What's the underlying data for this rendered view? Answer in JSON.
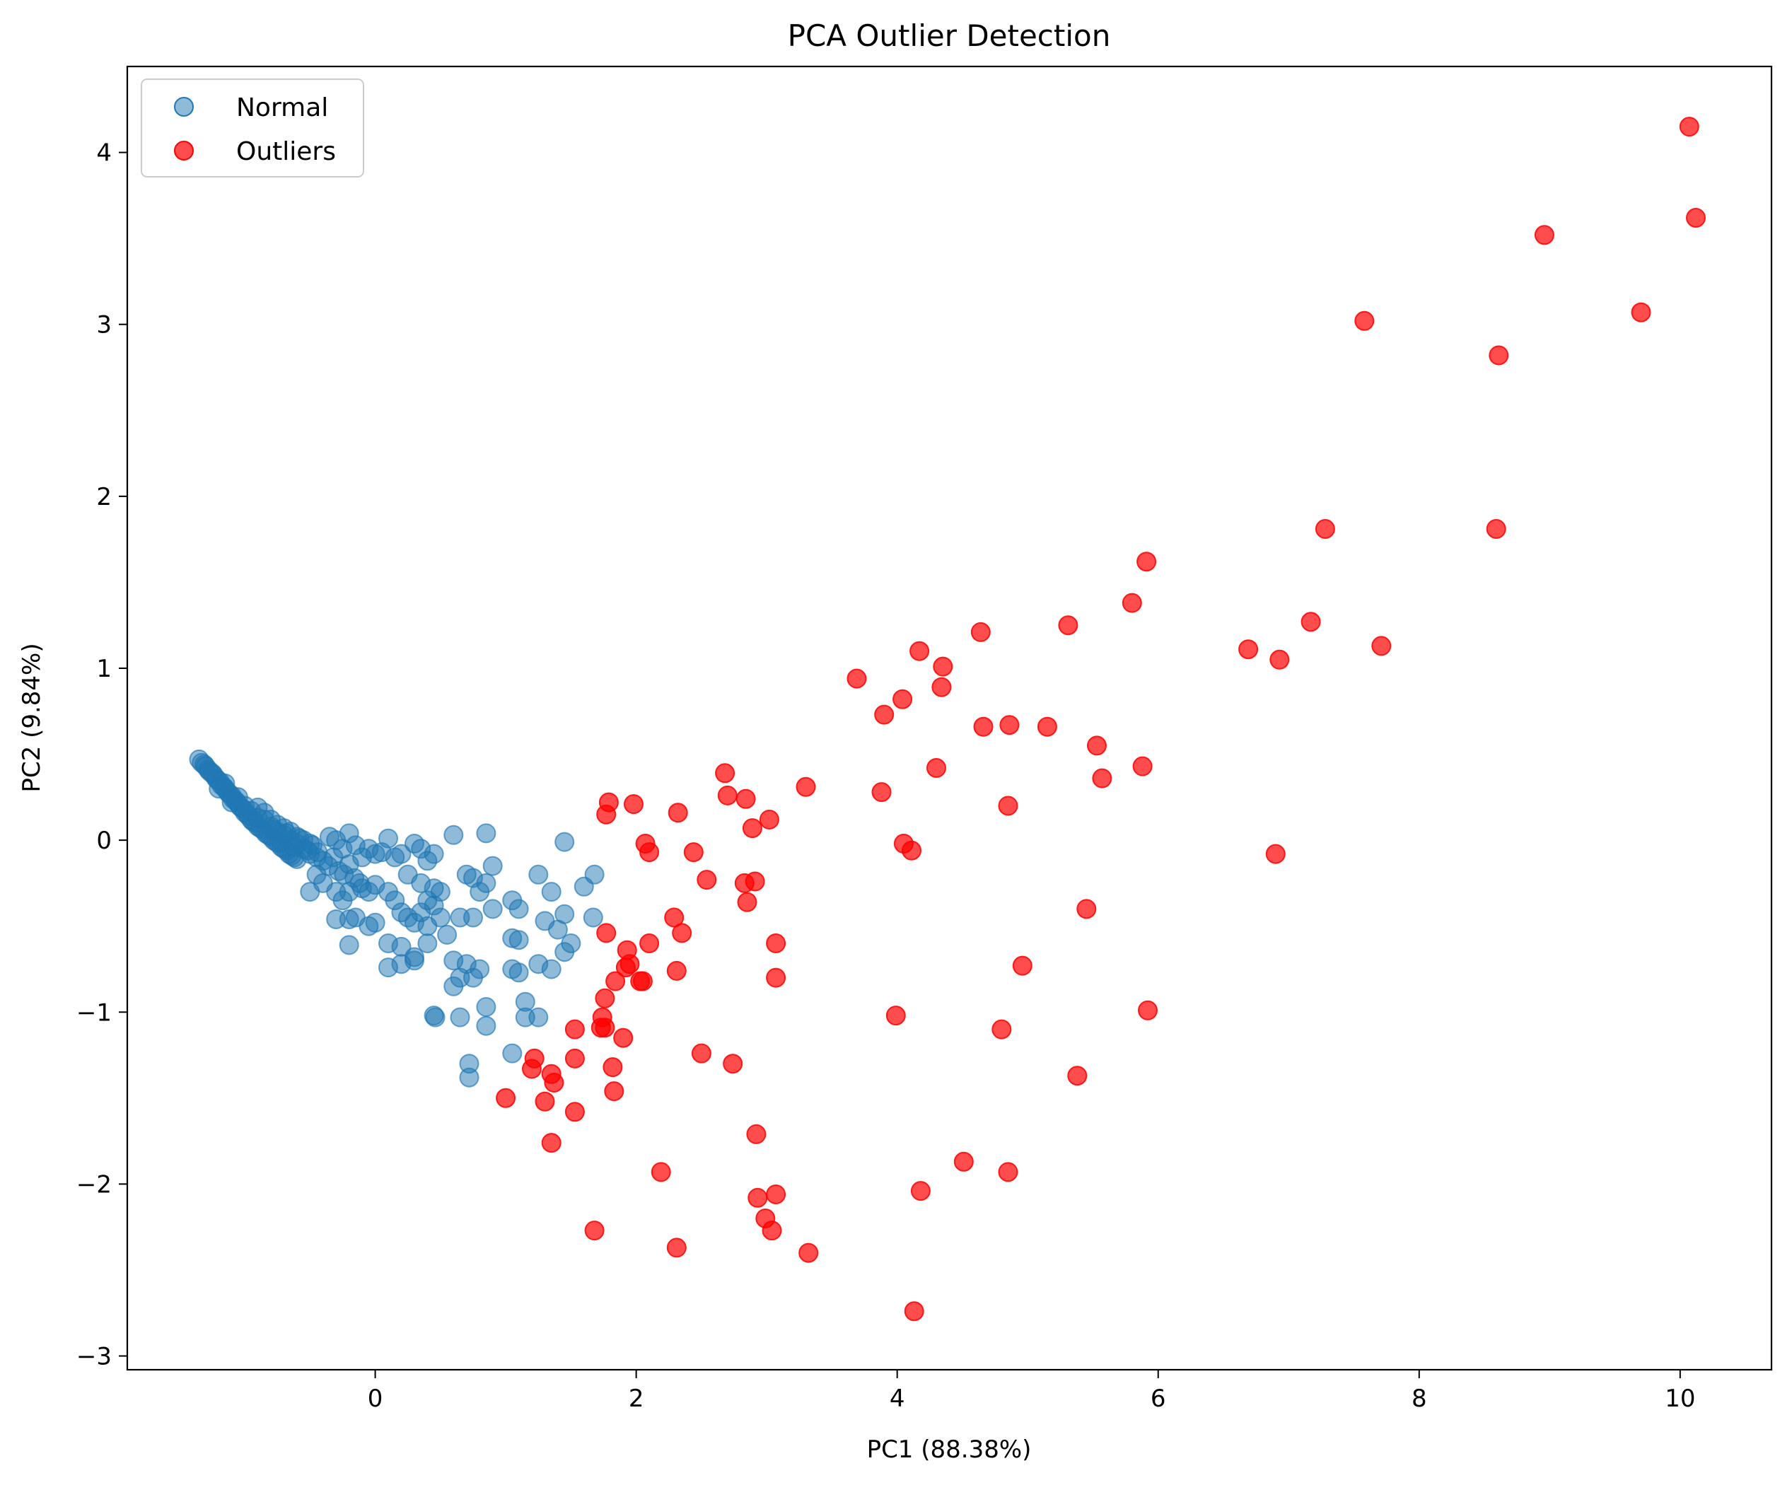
{
  "chart_data": {
    "type": "scatter",
    "title": "PCA Outlier Detection",
    "xlabel": "PC1 (88.38%)",
    "ylabel": "PC2 (9.84%)",
    "xlim": [
      -1.9,
      10.7
    ],
    "ylim": [
      -3.08,
      4.5
    ],
    "xticks": [
      0,
      2,
      4,
      6,
      8,
      10
    ],
    "yticks": [
      -3,
      -2,
      -1,
      0,
      1,
      2,
      3,
      4
    ],
    "xtick_labels": [
      "0",
      "2",
      "4",
      "6",
      "8",
      "10"
    ],
    "ytick_labels": [
      "−3",
      "−2",
      "−1",
      "0",
      "1",
      "2",
      "3",
      "4"
    ],
    "grid": false,
    "legend_position": "top-left",
    "series": [
      {
        "name": "Normal",
        "color": "#1f77b4",
        "opacity": 0.5,
        "points": [
          [
            -1.35,
            0.47
          ],
          [
            -1.33,
            0.45
          ],
          [
            -1.31,
            0.44
          ],
          [
            -1.3,
            0.43
          ],
          [
            -1.28,
            0.41
          ],
          [
            -1.27,
            0.4
          ],
          [
            -1.25,
            0.39
          ],
          [
            -1.24,
            0.38
          ],
          [
            -1.22,
            0.36
          ],
          [
            -1.21,
            0.35
          ],
          [
            -1.19,
            0.34
          ],
          [
            -1.18,
            0.32
          ],
          [
            -1.16,
            0.31
          ],
          [
            -1.15,
            0.3
          ],
          [
            -1.13,
            0.28
          ],
          [
            -1.12,
            0.27
          ],
          [
            -1.1,
            0.26
          ],
          [
            -1.09,
            0.24
          ],
          [
            -1.07,
            0.23
          ],
          [
            -1.06,
            0.22
          ],
          [
            -1.04,
            0.2
          ],
          [
            -1.03,
            0.19
          ],
          [
            -1.01,
            0.18
          ],
          [
            -1.0,
            0.16
          ],
          [
            -0.98,
            0.15
          ],
          [
            -0.97,
            0.14
          ],
          [
            -0.95,
            0.12
          ],
          [
            -0.94,
            0.11
          ],
          [
            -0.92,
            0.1
          ],
          [
            -0.9,
            0.08
          ],
          [
            -0.88,
            0.07
          ],
          [
            -0.86,
            0.06
          ],
          [
            -0.84,
            0.04
          ],
          [
            -0.82,
            0.03
          ],
          [
            -0.8,
            0.02
          ],
          [
            -0.78,
            0.0
          ],
          [
            -0.76,
            -0.01
          ],
          [
            -0.74,
            -0.02
          ],
          [
            -0.72,
            -0.04
          ],
          [
            -0.7,
            -0.05
          ],
          [
            -0.68,
            -0.06
          ],
          [
            -0.66,
            -0.08
          ],
          [
            -0.64,
            -0.09
          ],
          [
            -0.62,
            -0.1
          ],
          [
            -0.6,
            -0.11
          ],
          [
            -1.2,
            0.3
          ],
          [
            -1.15,
            0.33
          ],
          [
            -1.1,
            0.22
          ],
          [
            -1.05,
            0.25
          ],
          [
            -1.0,
            0.2
          ],
          [
            -0.95,
            0.17
          ],
          [
            -0.9,
            0.13
          ],
          [
            -0.85,
            0.12
          ],
          [
            -0.8,
            0.08
          ],
          [
            -0.75,
            0.05
          ],
          [
            -0.7,
            0.03
          ],
          [
            -0.65,
            0.0
          ],
          [
            -0.6,
            -0.02
          ],
          [
            -0.55,
            -0.05
          ],
          [
            -0.5,
            -0.08
          ],
          [
            -0.45,
            -0.1
          ],
          [
            -0.9,
            0.19
          ],
          [
            -0.85,
            0.16
          ],
          [
            -0.8,
            0.12
          ],
          [
            -0.75,
            0.09
          ],
          [
            -0.7,
            0.07
          ],
          [
            -0.65,
            0.05
          ],
          [
            -0.6,
            0.02
          ],
          [
            -0.55,
            0.0
          ],
          [
            -0.5,
            -0.02
          ],
          [
            -0.78,
            0.06
          ],
          [
            -0.72,
            -0.01
          ],
          [
            -0.68,
            0.04
          ],
          [
            -0.62,
            -0.04
          ],
          [
            -0.58,
            0.01
          ],
          [
            -0.52,
            -0.06
          ],
          [
            -0.48,
            -0.03
          ],
          [
            -0.44,
            -0.07
          ],
          [
            -0.4,
            -0.12
          ],
          [
            -0.36,
            -0.15
          ],
          [
            -0.32,
            -0.1
          ],
          [
            -0.28,
            -0.18
          ],
          [
            -0.24,
            -0.2
          ],
          [
            -0.2,
            -0.14
          ],
          [
            -0.16,
            -0.22
          ],
          [
            -0.12,
            -0.25
          ],
          [
            -0.35,
            0.02
          ],
          [
            -0.3,
            0.0
          ],
          [
            -0.25,
            -0.05
          ],
          [
            -0.2,
            0.04
          ],
          [
            -0.15,
            -0.03
          ],
          [
            -0.1,
            -0.1
          ],
          [
            -0.05,
            -0.05
          ],
          [
            0.0,
            -0.08
          ],
          [
            -0.4,
            -0.25
          ],
          [
            -0.45,
            -0.2
          ],
          [
            -0.3,
            -0.3
          ],
          [
            -0.25,
            -0.35
          ],
          [
            -0.2,
            -0.3
          ],
          [
            -0.1,
            -0.28
          ],
          [
            -0.05,
            -0.3
          ],
          [
            0.0,
            -0.26
          ],
          [
            -0.5,
            -0.3
          ],
          [
            -0.2,
            -0.46
          ],
          [
            -0.3,
            -0.46
          ],
          [
            -0.2,
            -0.61
          ],
          [
            -0.15,
            -0.45
          ],
          [
            -0.05,
            -0.5
          ],
          [
            0.0,
            -0.48
          ],
          [
            0.1,
            -0.3
          ],
          [
            0.15,
            -0.35
          ],
          [
            0.2,
            -0.42
          ],
          [
            0.25,
            -0.45
          ],
          [
            0.3,
            -0.48
          ],
          [
            0.35,
            -0.42
          ],
          [
            0.4,
            -0.5
          ],
          [
            0.45,
            -0.38
          ],
          [
            0.5,
            -0.45
          ],
          [
            0.55,
            -0.55
          ],
          [
            0.1,
            0.01
          ],
          [
            0.2,
            -0.08
          ],
          [
            0.3,
            -0.02
          ],
          [
            0.35,
            -0.05
          ],
          [
            0.4,
            -0.12
          ],
          [
            0.45,
            -0.08
          ],
          [
            0.15,
            -0.1
          ],
          [
            0.25,
            -0.2
          ],
          [
            0.35,
            -0.25
          ],
          [
            0.45,
            -0.28
          ],
          [
            0.4,
            -0.35
          ],
          [
            0.5,
            -0.3
          ],
          [
            0.05,
            -0.07
          ],
          [
            0.1,
            -0.6
          ],
          [
            0.2,
            -0.62
          ],
          [
            0.3,
            -0.7
          ],
          [
            0.1,
            -0.74
          ],
          [
            0.2,
            -0.72
          ],
          [
            0.3,
            -0.68
          ],
          [
            0.4,
            -0.6
          ],
          [
            0.6,
            0.03
          ],
          [
            0.7,
            -0.2
          ],
          [
            0.75,
            -0.22
          ],
          [
            0.8,
            -0.3
          ],
          [
            0.85,
            -0.25
          ],
          [
            0.9,
            -0.15
          ],
          [
            0.85,
            0.04
          ],
          [
            0.65,
            -0.45
          ],
          [
            0.75,
            -0.45
          ],
          [
            0.9,
            -0.4
          ],
          [
            0.6,
            -0.7
          ],
          [
            0.7,
            -0.72
          ],
          [
            0.8,
            -0.75
          ],
          [
            0.6,
            -0.85
          ],
          [
            0.65,
            -0.8
          ],
          [
            0.75,
            -0.8
          ],
          [
            0.45,
            -1.02
          ],
          [
            0.46,
            -1.03
          ],
          [
            0.65,
            -1.03
          ],
          [
            0.85,
            -0.97
          ],
          [
            0.85,
            -1.08
          ],
          [
            0.72,
            -1.3
          ],
          [
            0.72,
            -1.38
          ],
          [
            1.05,
            -0.35
          ],
          [
            1.1,
            -0.4
          ],
          [
            1.25,
            -0.2
          ],
          [
            1.35,
            -0.3
          ],
          [
            1.45,
            -0.43
          ],
          [
            1.4,
            -0.52
          ],
          [
            1.3,
            -0.47
          ],
          [
            1.05,
            -0.57
          ],
          [
            1.1,
            -0.58
          ],
          [
            1.25,
            -0.72
          ],
          [
            1.35,
            -0.75
          ],
          [
            1.45,
            -0.65
          ],
          [
            1.5,
            -0.6
          ],
          [
            1.05,
            -0.75
          ],
          [
            1.1,
            -0.77
          ],
          [
            1.15,
            -0.94
          ],
          [
            1.15,
            -1.03
          ],
          [
            1.25,
            -1.03
          ],
          [
            1.05,
            -1.24
          ],
          [
            1.45,
            -0.01
          ],
          [
            1.6,
            -0.27
          ],
          [
            1.68,
            -0.2
          ],
          [
            1.67,
            -0.45
          ]
        ]
      },
      {
        "name": "Outliers",
        "color": "#ff0000",
        "opacity": 0.7,
        "points": [
          [
            10.07,
            4.15
          ],
          [
            10.12,
            3.62
          ],
          [
            8.96,
            3.52
          ],
          [
            9.7,
            3.07
          ],
          [
            7.58,
            3.02
          ],
          [
            8.61,
            2.82
          ],
          [
            7.28,
            1.81
          ],
          [
            8.59,
            1.81
          ],
          [
            5.91,
            1.62
          ],
          [
            5.8,
            1.38
          ],
          [
            5.31,
            1.25
          ],
          [
            7.17,
            1.27
          ],
          [
            4.64,
            1.21
          ],
          [
            6.69,
            1.11
          ],
          [
            6.93,
            1.05
          ],
          [
            7.71,
            1.13
          ],
          [
            4.17,
            1.1
          ],
          [
            4.35,
            1.01
          ],
          [
            3.69,
            0.94
          ],
          [
            4.04,
            0.82
          ],
          [
            4.34,
            0.89
          ],
          [
            3.9,
            0.73
          ],
          [
            4.66,
            0.66
          ],
          [
            4.86,
            0.67
          ],
          [
            5.15,
            0.66
          ],
          [
            5.53,
            0.55
          ],
          [
            4.3,
            0.42
          ],
          [
            5.88,
            0.43
          ],
          [
            5.57,
            0.36
          ],
          [
            3.88,
            0.28
          ],
          [
            4.85,
            0.2
          ],
          [
            3.3,
            0.31
          ],
          [
            2.68,
            0.39
          ],
          [
            2.7,
            0.26
          ],
          [
            2.84,
            0.24
          ],
          [
            2.89,
            0.07
          ],
          [
            3.02,
            0.12
          ],
          [
            1.79,
            0.22
          ],
          [
            1.98,
            0.21
          ],
          [
            1.77,
            0.15
          ],
          [
            2.32,
            0.16
          ],
          [
            4.05,
            -0.02
          ],
          [
            4.11,
            -0.06
          ],
          [
            2.07,
            -0.02
          ],
          [
            2.1,
            -0.07
          ],
          [
            2.44,
            -0.07
          ],
          [
            6.9,
            -0.08
          ],
          [
            2.54,
            -0.23
          ],
          [
            2.83,
            -0.25
          ],
          [
            2.91,
            -0.24
          ],
          [
            2.85,
            -0.36
          ],
          [
            5.45,
            -0.4
          ],
          [
            2.29,
            -0.45
          ],
          [
            1.77,
            -0.54
          ],
          [
            2.35,
            -0.54
          ],
          [
            2.1,
            -0.6
          ],
          [
            3.07,
            -0.6
          ],
          [
            1.93,
            -0.64
          ],
          [
            1.95,
            -0.72
          ],
          [
            1.92,
            -0.74
          ],
          [
            2.31,
            -0.76
          ],
          [
            4.96,
            -0.73
          ],
          [
            3.07,
            -0.8
          ],
          [
            1.84,
            -0.82
          ],
          [
            2.03,
            -0.82
          ],
          [
            2.05,
            -0.82
          ],
          [
            1.76,
            -0.92
          ],
          [
            5.92,
            -0.99
          ],
          [
            3.99,
            -1.02
          ],
          [
            1.74,
            -1.03
          ],
          [
            1.73,
            -1.09
          ],
          [
            1.76,
            -1.09
          ],
          [
            1.53,
            -1.1
          ],
          [
            1.9,
            -1.15
          ],
          [
            4.8,
            -1.1
          ],
          [
            2.5,
            -1.24
          ],
          [
            2.74,
            -1.3
          ],
          [
            1.53,
            -1.27
          ],
          [
            1.22,
            -1.27
          ],
          [
            1.2,
            -1.33
          ],
          [
            1.82,
            -1.32
          ],
          [
            1.35,
            -1.36
          ],
          [
            5.38,
            -1.37
          ],
          [
            1.37,
            -1.41
          ],
          [
            1.83,
            -1.46
          ],
          [
            1.0,
            -1.5
          ],
          [
            1.3,
            -1.52
          ],
          [
            1.53,
            -1.58
          ],
          [
            1.35,
            -1.76
          ],
          [
            2.92,
            -1.71
          ],
          [
            4.51,
            -1.87
          ],
          [
            4.85,
            -1.93
          ],
          [
            2.19,
            -1.93
          ],
          [
            4.18,
            -2.04
          ],
          [
            3.07,
            -2.06
          ],
          [
            2.93,
            -2.08
          ],
          [
            2.99,
            -2.2
          ],
          [
            3.04,
            -2.27
          ],
          [
            1.68,
            -2.27
          ],
          [
            2.31,
            -2.37
          ],
          [
            3.32,
            -2.4
          ],
          [
            4.13,
            -2.74
          ]
        ]
      }
    ]
  }
}
